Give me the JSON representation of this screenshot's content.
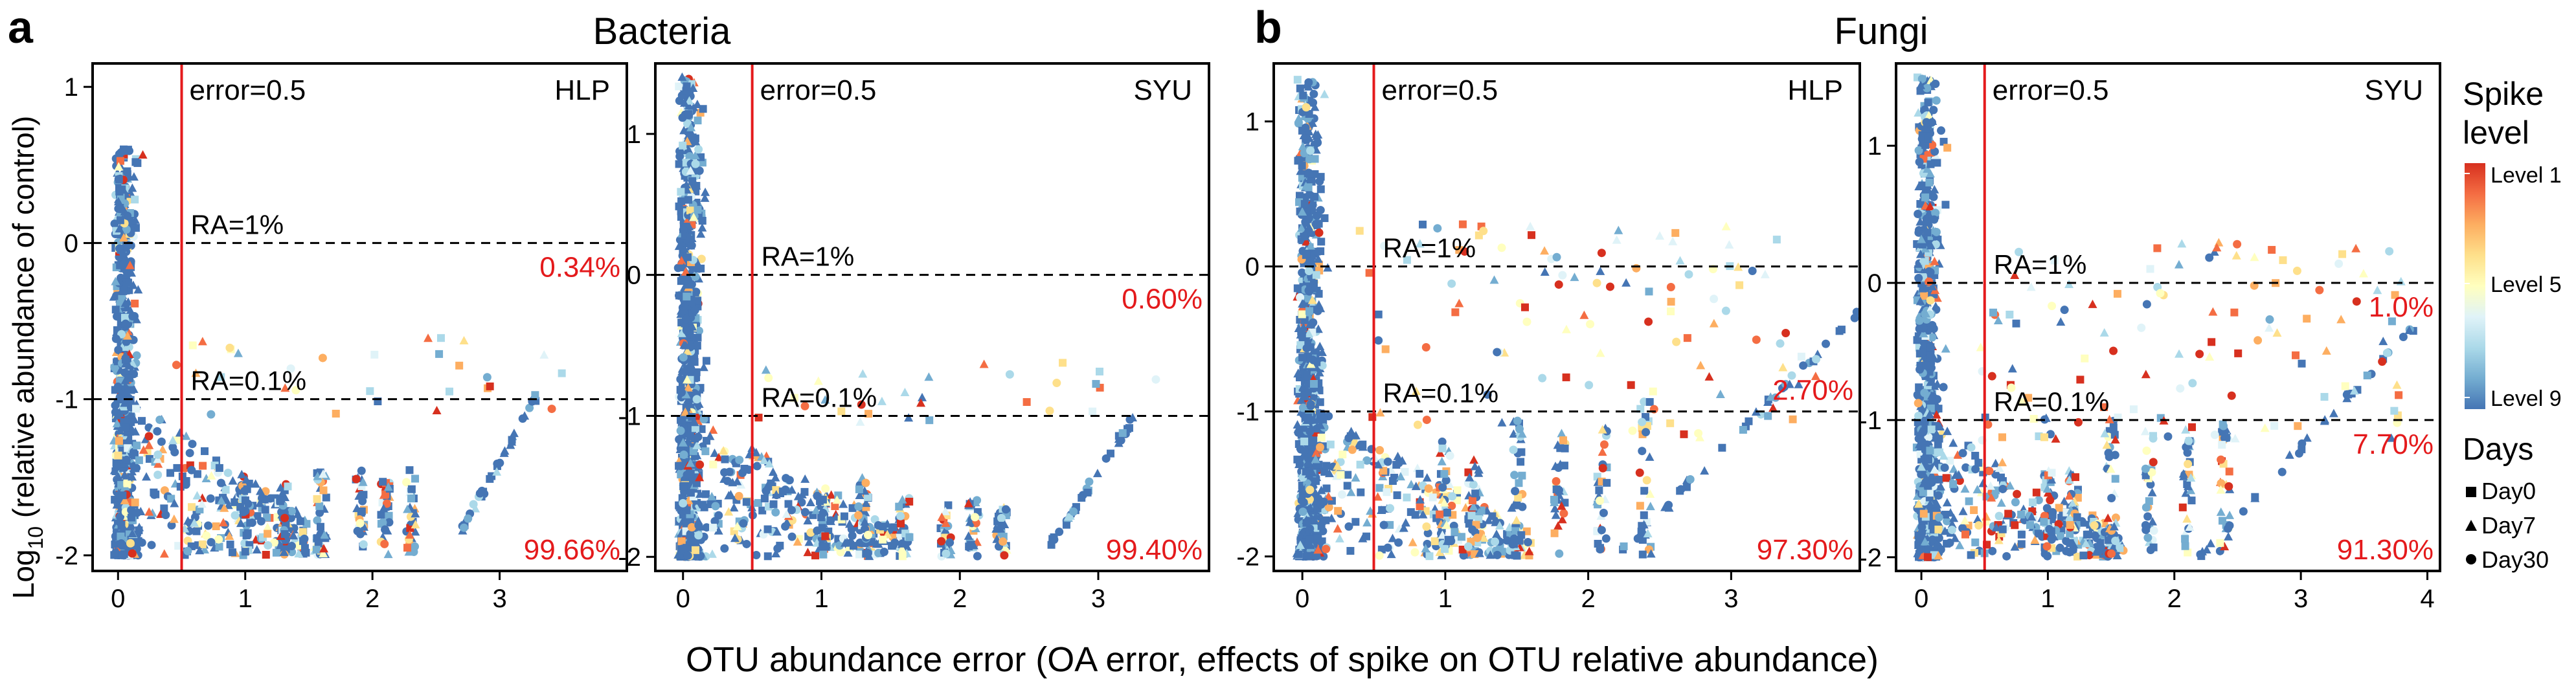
{
  "figure": {
    "x_label": "OTU abundance error (OA error, effects of spike on OTU relative abundance)",
    "y_label_main": "Log",
    "y_label_sub": "10",
    "y_label_rest": " (relative abundance of control)"
  },
  "groups": [
    {
      "letter": "a",
      "title": "Bacteria"
    },
    {
      "letter": "b",
      "title": "Fungi"
    }
  ],
  "legend": {
    "spike_title_1": "Spike",
    "spike_title_2": "level",
    "level_1": "Level 1",
    "level_5": "Level 5",
    "level_9": "Level 9",
    "colors": [
      "#d7301f",
      "#f46d43",
      "#fdae61",
      "#fee08b",
      "#ffffbf",
      "#e0f3f8",
      "#abd9e9",
      "#74add1",
      "#4575b4"
    ],
    "days_title": "Days",
    "days": [
      {
        "label": "Day0",
        "shape": "square"
      },
      {
        "label": "Day7",
        "shape": "triangle"
      },
      {
        "label": "Day30",
        "shape": "circle"
      }
    ]
  },
  "chart_data": [
    {
      "type": "scatter",
      "group": "Bacteria",
      "site": "HLP",
      "xlim": [
        -0.2,
        4.0
      ],
      "ylim": [
        -2.1,
        1.15
      ],
      "xticks": [
        "0",
        "1",
        "2",
        "3"
      ],
      "yticks": [
        "-2",
        "-1",
        "0",
        "1"
      ],
      "error_line": 0.5,
      "error_label": "error=0.5",
      "ra_lines": [
        {
          "y": 0,
          "label": "RA=1%",
          "pct": "0.34%"
        },
        {
          "y": -1,
          "label": "RA=0.1%"
        }
      ],
      "bottom_pct": "99.66%",
      "clusters": [
        {
          "x": 0,
          "y_min": -2,
          "y_max": 0.6,
          "description": "dense cloud at OA error near 0"
        },
        {
          "x": 1.6,
          "y_min": -2,
          "y_max": -1.5
        },
        {
          "x": 2.1,
          "y_min": -2,
          "y_max": -1.4
        },
        {
          "x": 3.0,
          "y_min": -2,
          "y_max": -1.0
        }
      ]
    },
    {
      "type": "scatter",
      "group": "Bacteria",
      "site": "SYU",
      "xlim": [
        -0.2,
        3.8
      ],
      "ylim": [
        -2.1,
        1.5
      ],
      "xticks": [
        "0",
        "1",
        "2",
        "3"
      ],
      "yticks": [
        "-2",
        "-1",
        "0",
        "1"
      ],
      "error_line": 0.5,
      "error_label": "error=0.5",
      "ra_lines": [
        {
          "y": 0,
          "label": "RA=1%",
          "pct": "0.60%"
        },
        {
          "y": -1,
          "label": "RA=0.1%"
        }
      ],
      "bottom_pct": "99.40%",
      "clusters": [
        {
          "x": 0,
          "y_min": -2,
          "y_max": 1.4
        },
        {
          "x": 1.6,
          "y_min": -2,
          "y_max": -1.6
        },
        {
          "x": 2.6,
          "y_min": -2,
          "y_max": -0.9
        }
      ]
    },
    {
      "type": "scatter",
      "group": "Fungi",
      "site": "HLP",
      "xlim": [
        -0.2,
        3.9
      ],
      "ylim": [
        -2.1,
        1.4
      ],
      "xticks": [
        "0",
        "1",
        "2",
        "3"
      ],
      "yticks": [
        "-2",
        "-1",
        "0",
        "1"
      ],
      "error_line": 0.5,
      "error_label": "error=0.5",
      "ra_lines": [
        {
          "y": 0,
          "label": "RA=1%"
        },
        {
          "y": -1,
          "label": "RA=0.1%",
          "pct": "2.70%"
        }
      ],
      "bottom_pct": "97.30%",
      "clusters": [
        {
          "x": 0,
          "y_min": -2,
          "y_max": 1.3
        },
        {
          "x": 1.5,
          "y_min": -2,
          "y_max": -0.3
        },
        {
          "x": 3.0,
          "y_min": -2,
          "y_max": -0.3
        }
      ]
    },
    {
      "type": "scatter",
      "group": "Fungi",
      "site": "SYU",
      "xlim": [
        -0.2,
        4.1
      ],
      "ylim": [
        -2.1,
        1.6
      ],
      "xticks": [
        "0",
        "1",
        "2",
        "3",
        "4"
      ],
      "yticks": [
        "-2",
        "-1",
        "0",
        "1"
      ],
      "error_line": 0.5,
      "error_label": "error=0.5",
      "ra_lines": [
        {
          "y": 0,
          "label": "RA=1%",
          "pct": "1.0%"
        },
        {
          "y": -1,
          "label": "RA=0.1%",
          "pct": "7.70%"
        }
      ],
      "bottom_pct": "91.30%",
      "clusters": [
        {
          "x": 0,
          "y_min": -2,
          "y_max": 1.5
        },
        {
          "x": 1.5,
          "y_min": -2,
          "y_max": 0.4
        },
        {
          "x": 3.5,
          "y_min": -2,
          "y_max": -0.2
        }
      ]
    }
  ]
}
